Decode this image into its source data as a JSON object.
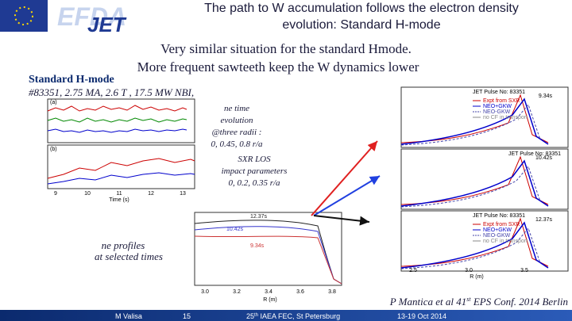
{
  "header": {
    "logo_left": "EFDA",
    "logo_right": "JET",
    "title_line1": "The path to W accumulation follows the electron density",
    "title_line2": "evolution: Standard H-mode"
  },
  "subtitle": {
    "line1": "Very similar situation for the standard Hmode.",
    "line2": "More frequent sawteeth keep the W dynamics lower"
  },
  "case": {
    "label": "Standard H-mode",
    "shot": "#83351, 2.75 MA, 2.6 T , 17.5 MW NBI,"
  },
  "notes": {
    "ne_time": [
      "ne time",
      "evolution",
      "@three radii :",
      "0, 0.45, 0.8 r/a"
    ],
    "sxr": [
      "SXR LOS",
      "impact parameters",
      "0, 0.2, 0.35 r/a"
    ],
    "profiles": [
      "ne profiles",
      "at selected times"
    ]
  },
  "left_plot": {
    "x_label": "Time (s)",
    "x_ticks": [
      "9",
      "10",
      "11",
      "12",
      "13"
    ],
    "panel_a": "(a)",
    "panel_b": "(b)"
  },
  "middle_plot": {
    "times": [
      "12.37s",
      "10.42s",
      "9.34s"
    ],
    "x_label": "R (m)",
    "x_ticks": [
      "3.0",
      "3.2",
      "3.4",
      "3.6",
      "3.8"
    ]
  },
  "right_plot": {
    "pulse": "JET Pulse No: 83351",
    "times": [
      "9.34s",
      "10.42s",
      "12.37s"
    ],
    "legend": [
      "Expt from SXR",
      "NEO+GKW",
      "NEO-GKW",
      "no CF in transport"
    ],
    "x_label": "R (m)",
    "x_ticks": [
      "2.5",
      "3.0",
      "3.5"
    ]
  },
  "citation": {
    "before": "P Mantica et al 41",
    "sup": "st",
    "after": " EPS Conf. 2014 Berlin"
  },
  "footer": {
    "author": "M Valisa",
    "page": "15",
    "conf_pre": "25",
    "conf_sup": "th",
    "conf_post": " IAEA FEC, St Petersburg",
    "dates": "13-19 Oct 2014"
  }
}
